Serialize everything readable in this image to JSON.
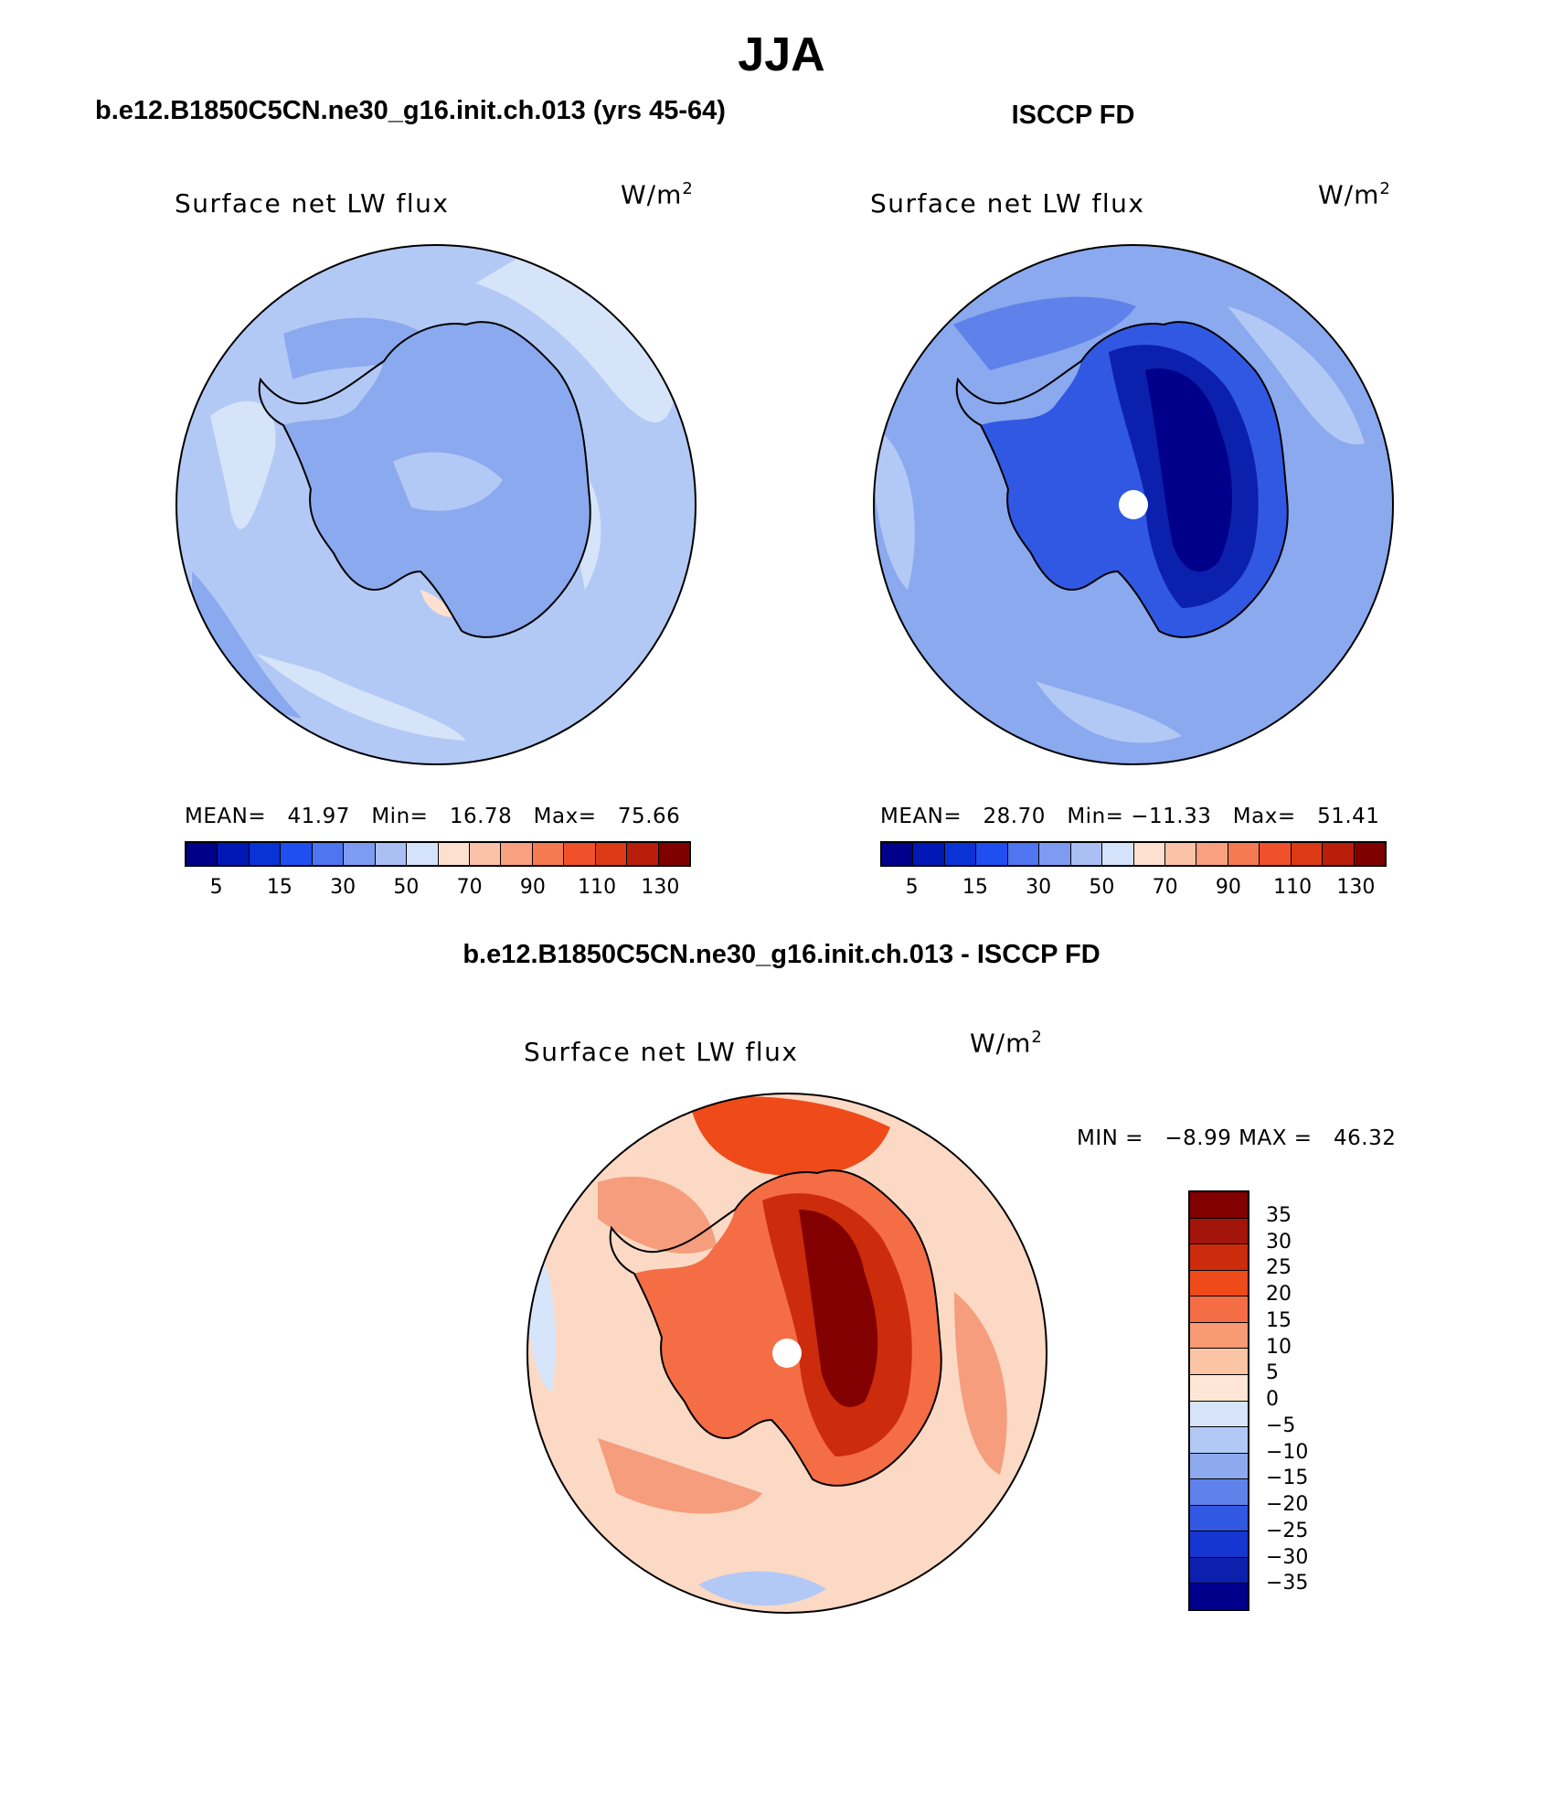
{
  "page_title": "JJA",
  "colors": {
    "ocean_blue": "#b3c9f5",
    "ocean_light": "#d6e4f9",
    "ocean_mid": "#8ba9ee",
    "deep_blue": "#1a3fd9",
    "coast": "#000000",
    "diff_base": "#fbd9c4",
    "diff_mid": "#f59d7c",
    "diff_high": "#e8451f",
    "diff_max": "#9e0c05"
  },
  "panels": {
    "left": {
      "case_title": "b.e12.B1850C5CN.ne30_g16.init.ch.013 (yrs 45-64)",
      "variable_title": "Surface net LW flux",
      "units_base": "W/m",
      "units_exp": "2",
      "mean_label": "MEAN=",
      "mean_value": "41.97",
      "min_label": "Min=",
      "min_value": "16.78",
      "max_label": "Max=",
      "max_value": "75.66"
    },
    "right": {
      "case_title": "ISCCP FD",
      "variable_title": "Surface net LW flux",
      "units_base": "W/m",
      "units_exp": "2",
      "mean_label": "MEAN=",
      "mean_value": "28.70",
      "min_label": "Min=",
      "min_value": "−11.33",
      "max_label": "Max=",
      "max_value": "51.41"
    },
    "diff": {
      "case_title": "b.e12.B1850C5CN.ne30_g16.init.ch.013 - ISCCP FD",
      "variable_title": "Surface net LW flux",
      "units_base": "W/m",
      "units_exp": "2",
      "min_label": "MIN =",
      "min_value": "−8.99",
      "max_label": "MAX =",
      "max_value": "46.32"
    }
  },
  "abs_colorbar": {
    "colors": [
      "#00008a",
      "#0018b5",
      "#0a33d6",
      "#1f4ff0",
      "#4f75f0",
      "#7d9bf2",
      "#aac0f5",
      "#d4e2fa",
      "#fde0d0",
      "#fbc2a8",
      "#f8a080",
      "#f57a52",
      "#f0502a",
      "#dc3a14",
      "#b81e0a",
      "#800000"
    ],
    "ticks": [
      "5",
      "15",
      "30",
      "50",
      "70",
      "90",
      "110",
      "130"
    ]
  },
  "diff_colorbar": {
    "colors": [
      "#820000",
      "#a3140a",
      "#cc2c0c",
      "#ee4a1a",
      "#f56d45",
      "#f89a74",
      "#fac4a5",
      "#fde6d6",
      "#d7e5fb",
      "#b3c9f5",
      "#8daaef",
      "#5f82ea",
      "#3158e3",
      "#1636d1",
      "#0b21ad",
      "#00008a"
    ],
    "ticks": [
      "35",
      "30",
      "25",
      "20",
      "15",
      "10",
      "5",
      "0",
      "−5",
      "−10",
      "−15",
      "−20",
      "−25",
      "−30",
      "−35"
    ]
  }
}
